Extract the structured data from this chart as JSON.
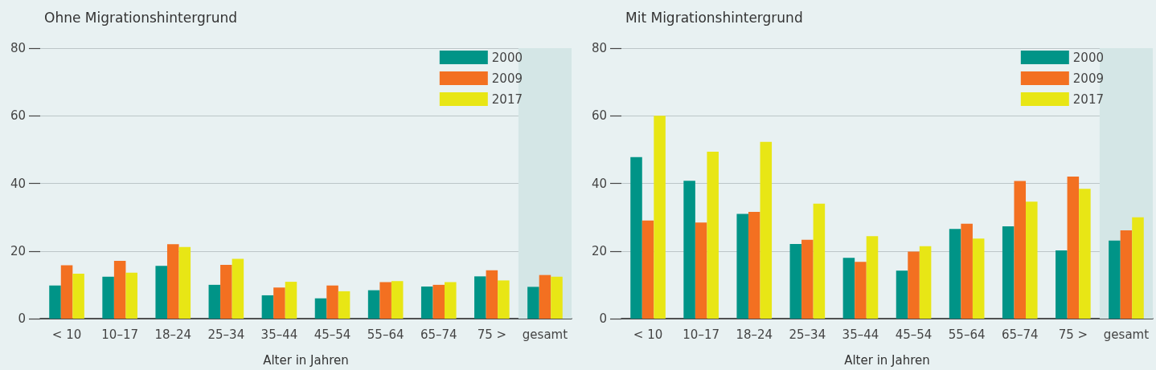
{
  "chart_data": [
    {
      "type": "bar",
      "title": "Ohne Migrationshintergrund",
      "xlabel": "Alter in Jahren",
      "categories": [
        "< 10",
        "10–17",
        "18–24",
        "25–34",
        "35–44",
        "45–54",
        "55–64",
        "65–74",
        "75 >",
        "gesamt"
      ],
      "series": [
        {
          "name": "2000",
          "color": "#009487",
          "values": [
            9.8,
            12.4,
            15.6,
            10,
            6.9,
            6,
            8.4,
            9.5,
            12.5,
            9.4
          ]
        },
        {
          "name": "2009",
          "color": "#f37021",
          "values": [
            15.8,
            17.1,
            22,
            15.9,
            9.2,
            9.8,
            10.8,
            10,
            14.3,
            12.9
          ]
        },
        {
          "name": "2017",
          "color": "#e8e615",
          "values": [
            13.3,
            13.6,
            21.2,
            17.7,
            10.9,
            8.1,
            11.1,
            10.8,
            11.3,
            12.4
          ]
        }
      ],
      "ylim": [
        0,
        80
      ],
      "yticks": [
        0,
        20,
        40,
        60,
        80
      ],
      "grid": "y",
      "legend": "top right",
      "bands": [
        {
          "axis": "x",
          "from": "gesamt",
          "to": "gesamt",
          "color": "#d4e6e6"
        }
      ]
    },
    {
      "type": "bar",
      "title": "Mit Migrationshintergrund",
      "xlabel": "Alter in Jahren",
      "categories": [
        "< 10",
        "10–17",
        "18–24",
        "25–34",
        "35–44",
        "45–54",
        "55–64",
        "65–74",
        "75 >",
        "gesamt"
      ],
      "series": [
        {
          "name": "2000",
          "color": "#009487",
          "values": [
            47.8,
            40.8,
            31,
            22.1,
            18,
            14.2,
            26.5,
            27.3,
            20.2,
            23.1
          ]
        },
        {
          "name": "2009",
          "color": "#f37021",
          "values": [
            29,
            28.4,
            31.6,
            23.3,
            16.8,
            19.8,
            28.1,
            40.7,
            42,
            26.1
          ]
        },
        {
          "name": "2017",
          "color": "#e8e615",
          "values": [
            60,
            49.4,
            52.3,
            34,
            24.4,
            21.4,
            23.7,
            34.6,
            38.4,
            30
          ]
        }
      ],
      "ylim": [
        0,
        80
      ],
      "yticks": [
        0,
        20,
        40,
        60,
        80
      ],
      "grid": "y",
      "legend": "top right",
      "bands": [
        {
          "axis": "x",
          "from": "gesamt",
          "to": "gesamt",
          "color": "#d4e6e6"
        }
      ]
    }
  ]
}
